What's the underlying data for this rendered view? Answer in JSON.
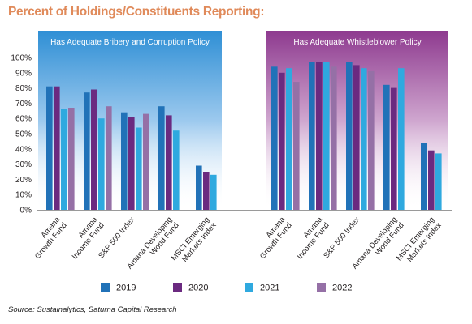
{
  "page": {
    "title": "Percent of Holdings/Constituents Reporting:",
    "source": "Source: Sustainalytics, Saturna Capital Research"
  },
  "chart_data": {
    "type": "bar",
    "y_tick_labels": [
      "0%",
      "10%",
      "20%",
      "30%",
      "40%",
      "50%",
      "60%",
      "70%",
      "80%",
      "90%",
      "100%"
    ],
    "ylim": [
      0,
      100
    ],
    "grid": false,
    "legend_position": "bottom",
    "series_names": [
      "2019",
      "2020",
      "2021",
      "2022"
    ],
    "series_colors": [
      "#2172b8",
      "#6b2a80",
      "#2fa9df",
      "#9570a6"
    ],
    "panels": [
      {
        "title": "Has Adequate Bribery and Corruption Policy",
        "header_color": "#2f8fd5",
        "categories": [
          [
            "Amana",
            "Growth Fund"
          ],
          [
            "Amana",
            "Income Fund"
          ],
          [
            "S&P 500 Index"
          ],
          [
            "Amana Developing",
            "World Fund"
          ],
          [
            "MSCI Emerging",
            "Markets Index"
          ]
        ],
        "series": [
          {
            "name": "2019",
            "values": [
              81,
              77,
              64,
              68,
              29
            ]
          },
          {
            "name": "2020",
            "values": [
              81,
              79,
              61,
              62,
              25
            ]
          },
          {
            "name": "2021",
            "values": [
              66,
              60,
              54,
              52,
              23
            ]
          },
          {
            "name": "2022",
            "values": [
              67,
              68,
              63,
              null,
              null
            ]
          }
        ]
      },
      {
        "title": "Has Adequate Whistleblower Policy",
        "header_color": "#8e3a8f",
        "categories": [
          [
            "Amana",
            "Growth Fund"
          ],
          [
            "Amana",
            "Income Fund"
          ],
          [
            "S&P 500 Index"
          ],
          [
            "Amana Developing",
            "World Fund"
          ],
          [
            "MSCI Emerging",
            "Markets Index"
          ]
        ],
        "series": [
          {
            "name": "2019",
            "values": [
              94,
              97,
              97,
              82,
              44
            ]
          },
          {
            "name": "2020",
            "values": [
              90,
              97,
              95,
              80,
              39
            ]
          },
          {
            "name": "2021",
            "values": [
              93,
              97,
              93,
              93,
              37
            ]
          },
          {
            "name": "2022",
            "values": [
              84,
              94,
              91,
              null,
              null
            ]
          }
        ]
      }
    ]
  }
}
